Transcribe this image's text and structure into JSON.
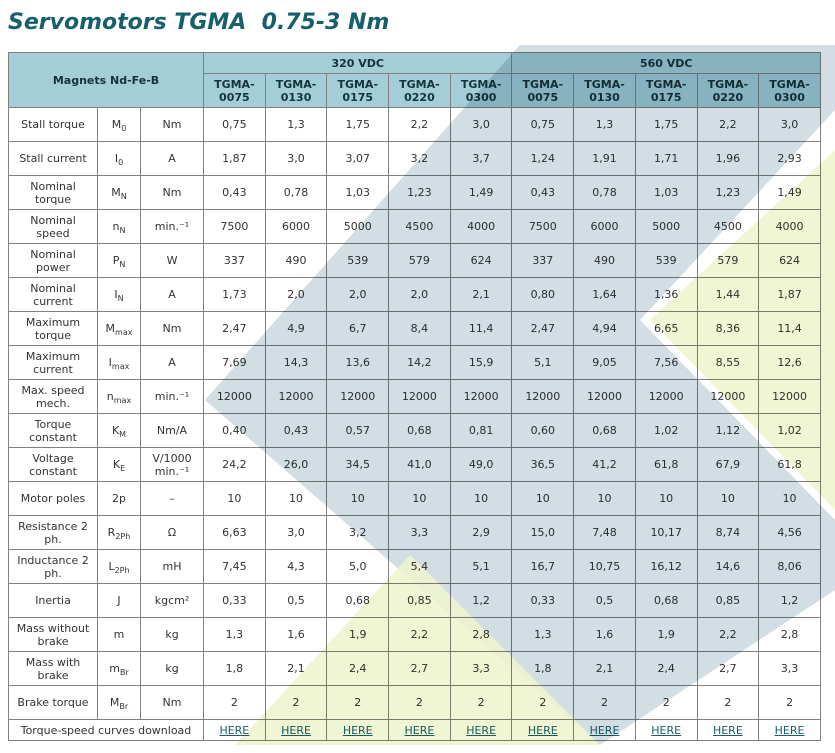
{
  "title": "Servomotors TGMA  0.75-3 Nm",
  "table": {
    "corner": "Magnets Nd-Fe-B",
    "groups": [
      {
        "label": "320 VDC",
        "models": [
          "TGMA-0075",
          "TGMA-0130",
          "TGMA-0175",
          "TGMA-0220",
          "TGMA-0300"
        ]
      },
      {
        "label": "560 VDC",
        "models": [
          "TGMA-0075",
          "TGMA-0130",
          "TGMA-0175",
          "TGMA-0220",
          "TGMA-0300"
        ]
      }
    ],
    "rows": [
      {
        "label": "Stall torque",
        "symbol": {
          "base": "M",
          "sub": "0"
        },
        "unit": "Nm",
        "values": [
          "0,75",
          "1,3",
          "1,75",
          "2,2",
          "3,0",
          "0,75",
          "1,3",
          "1,75",
          "2,2",
          "3,0"
        ]
      },
      {
        "label": "Stall current",
        "symbol": {
          "base": "I",
          "sub": "0"
        },
        "unit": "A",
        "values": [
          "1,87",
          "3,0",
          "3,07",
          "3,2",
          "3,7",
          "1,24",
          "1,91",
          "1,71",
          "1,96",
          "2,93"
        ]
      },
      {
        "label": "Nominal torque",
        "symbol": {
          "base": "M",
          "sub": "N"
        },
        "unit": "Nm",
        "values": [
          "0,43",
          "0,78",
          "1,03",
          "1,23",
          "1,49",
          "0,43",
          "0,78",
          "1,03",
          "1,23",
          "1,49"
        ]
      },
      {
        "label": "Nominal speed",
        "symbol": {
          "base": "n",
          "sub": "N"
        },
        "unit": "min.⁻¹",
        "values": [
          "7500",
          "6000",
          "5000",
          "4500",
          "4000",
          "7500",
          "6000",
          "5000",
          "4500",
          "4000"
        ]
      },
      {
        "label": "Nominal power",
        "symbol": {
          "base": "P",
          "sub": "N"
        },
        "unit": "W",
        "values": [
          "337",
          "490",
          "539",
          "579",
          "624",
          "337",
          "490",
          "539",
          "579",
          "624"
        ]
      },
      {
        "label": "Nominal current",
        "symbol": {
          "base": "I",
          "sub": "N"
        },
        "unit": "A",
        "values": [
          "1,73",
          "2,0",
          "2,0",
          "2,0",
          "2,1",
          "0,80",
          "1,64",
          "1,36",
          "1,44",
          "1,87"
        ]
      },
      {
        "label": "Maximum torque",
        "symbol": {
          "base": "M",
          "sub": "max"
        },
        "unit": "Nm",
        "values": [
          "2,47",
          "4,9",
          "6,7",
          "8,4",
          "11,4",
          "2,47",
          "4,94",
          "6,65",
          "8,36",
          "11,4"
        ]
      },
      {
        "label": "Maximum current",
        "symbol": {
          "base": "I",
          "sub": "max"
        },
        "unit": "A",
        "values": [
          "7,69",
          "14,3",
          "13,6",
          "14,2",
          "15,9",
          "5,1",
          "9,05",
          "7,56",
          "8,55",
          "12,6"
        ]
      },
      {
        "label": "Max. speed mech.",
        "symbol": {
          "base": "n",
          "sub": "max"
        },
        "unit": "min.⁻¹",
        "values": [
          "12000",
          "12000",
          "12000",
          "12000",
          "12000",
          "12000",
          "12000",
          "12000",
          "12000",
          "12000"
        ]
      },
      {
        "label": "Torque constant",
        "symbol": {
          "base": "K",
          "sub": "M"
        },
        "unit": "Nm/A",
        "values": [
          "0,40",
          "0,43",
          "0,57",
          "0,68",
          "0,81",
          "0,60",
          "0,68",
          "1,02",
          "1,12",
          "1,02"
        ]
      },
      {
        "label": "Voltage constant",
        "symbol": {
          "base": "K",
          "sub": "E"
        },
        "unit": "V/1000 min.⁻¹",
        "values": [
          "24,2",
          "26,0",
          "34,5",
          "41,0",
          "49,0",
          "36,5",
          "41,2",
          "61,8",
          "67,9",
          "61,8"
        ]
      },
      {
        "label": "Motor poles",
        "symbol": {
          "base": "2p"
        },
        "unit": "–",
        "values": [
          "10",
          "10",
          "10",
          "10",
          "10",
          "10",
          "10",
          "10",
          "10",
          "10"
        ]
      },
      {
        "label": "Resistance 2 ph.",
        "symbol": {
          "base": "R",
          "sub": "2Ph"
        },
        "unit": "Ω",
        "values": [
          "6,63",
          "3,0",
          "3,2",
          "3,3",
          "2,9",
          "15,0",
          "7,48",
          "10,17",
          "8,74",
          "4,56"
        ]
      },
      {
        "label": "Inductance 2 ph.",
        "symbol": {
          "base": "L",
          "sub": "2Ph"
        },
        "unit": "mH",
        "values": [
          "7,45",
          "4,3",
          "5,0",
          "5,4",
          "5,1",
          "16,7",
          "10,75",
          "16,12",
          "14,6",
          "8,06"
        ]
      },
      {
        "label": "Inertia",
        "symbol": {
          "base": "J"
        },
        "unit": "kgcm²",
        "values": [
          "0,33",
          "0,5",
          "0,68",
          "0,85",
          "1,2",
          "0,33",
          "0,5",
          "0,68",
          "0,85",
          "1,2"
        ]
      },
      {
        "label": "Mass without brake",
        "symbol": {
          "base": "m"
        },
        "unit": "kg",
        "values": [
          "1,3",
          "1,6",
          "1,9",
          "2,2",
          "2,8",
          "1,3",
          "1,6",
          "1,9",
          "2,2",
          "2,8"
        ]
      },
      {
        "label": "Mass with brake",
        "symbol": {
          "base": "m",
          "sub": "Br"
        },
        "unit": "kg",
        "values": [
          "1,8",
          "2,1",
          "2,4",
          "2,7",
          "3,3",
          "1,8",
          "2,1",
          "2,4",
          "2,7",
          "3,3"
        ]
      },
      {
        "label": "Brake torque",
        "symbol": {
          "base": "M",
          "sub": "Br"
        },
        "unit": "Nm",
        "values": [
          "2",
          "2",
          "2",
          "2",
          "2",
          "2",
          "2",
          "2",
          "2",
          "2"
        ]
      }
    ],
    "download": {
      "label": "Torque-speed curves download",
      "links": [
        "HERE",
        "HERE",
        "HERE",
        "HERE",
        "HERE",
        "HERE",
        "HERE",
        "HERE",
        "HERE",
        "HERE"
      ]
    }
  }
}
